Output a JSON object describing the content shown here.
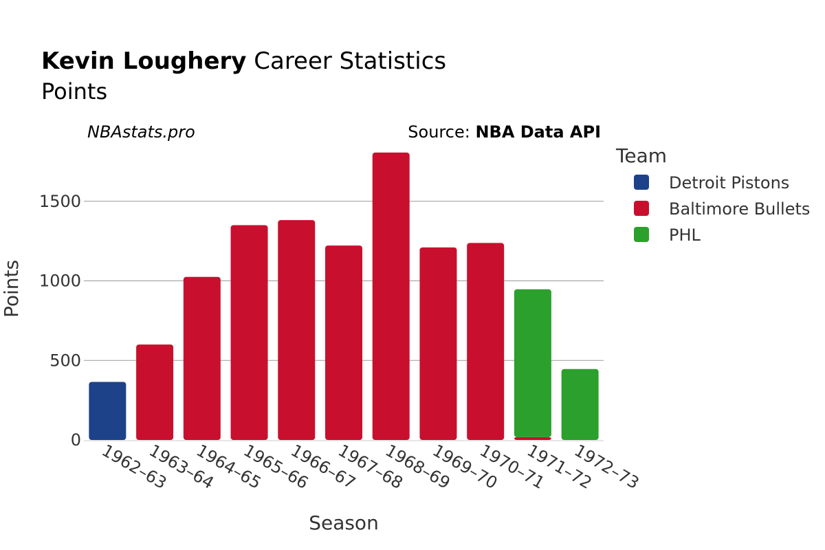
{
  "title": {
    "bold": "Kevin Loughery",
    "rest": " Career Statistics"
  },
  "subtitle": "Points",
  "watermark": "NBAstats.pro",
  "source": {
    "prefix": "Source: ",
    "name": "NBA Data API"
  },
  "legend": {
    "title": "Team",
    "items": [
      {
        "label": "Detroit Pistons",
        "color": "#1d428a"
      },
      {
        "label": "Baltimore Bullets",
        "color": "#c8102e"
      },
      {
        "label": "PHL",
        "color": "#2ca02c"
      }
    ]
  },
  "chart_data": {
    "type": "bar",
    "stacked": true,
    "title": "Kevin Loughery Career Statistics",
    "subtitle": "Points",
    "xlabel": "Season",
    "ylabel": "Points",
    "categories": [
      "1962–63",
      "1963–64",
      "1964–65",
      "1965–66",
      "1966–67",
      "1967–68",
      "1968–69",
      "1969–70",
      "1970–71",
      "1971–72",
      "1972–73"
    ],
    "ylim": [
      0,
      1800
    ],
    "yticks": [
      0,
      500,
      1000,
      1500
    ],
    "grid": true,
    "legend_position": "right",
    "series": [
      {
        "name": "Detroit Pistons",
        "color": "#1d428a",
        "values": [
          365,
          0,
          0,
          0,
          0,
          0,
          0,
          0,
          0,
          0,
          0
        ]
      },
      {
        "name": "Baltimore Bullets",
        "color": "#c8102e",
        "values": [
          0,
          600,
          1025,
          1350,
          1382,
          1222,
          1806,
          1210,
          1238,
          18,
          0
        ]
      },
      {
        "name": "PHL",
        "color": "#2ca02c",
        "values": [
          0,
          0,
          0,
          0,
          0,
          0,
          0,
          0,
          0,
          929,
          446
        ]
      }
    ]
  }
}
